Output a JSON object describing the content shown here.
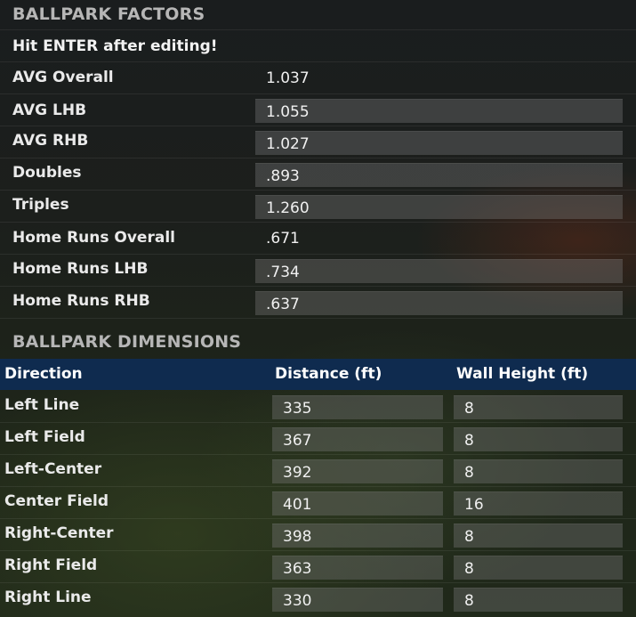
{
  "factors": {
    "title": "BALLPARK FACTORS",
    "note": "Hit ENTER after editing!",
    "rows": [
      {
        "label": "AVG Overall",
        "value": "1.037"
      },
      {
        "label": "AVG LHB",
        "value": "1.055"
      },
      {
        "label": "AVG RHB",
        "value": "1.027"
      },
      {
        "label": "Doubles",
        "value": ".893"
      },
      {
        "label": "Triples",
        "value": "1.260"
      },
      {
        "label": "Home Runs Overall",
        "value": ".671"
      },
      {
        "label": "Home Runs LHB",
        "value": ".734"
      },
      {
        "label": "Home Runs RHB",
        "value": ".637"
      }
    ]
  },
  "dimensions": {
    "title": "BALLPARK DIMENSIONS",
    "headers": {
      "direction": "Direction",
      "distance": "Distance (ft)",
      "wall_height": "Wall Height (ft)"
    },
    "rows": [
      {
        "direction": "Left Line",
        "distance": "335",
        "wall_height": "8"
      },
      {
        "direction": "Left Field",
        "distance": "367",
        "wall_height": "8"
      },
      {
        "direction": "Left-Center",
        "distance": "392",
        "wall_height": "8"
      },
      {
        "direction": "Center Field",
        "distance": "401",
        "wall_height": "16"
      },
      {
        "direction": "Right-Center",
        "distance": "398",
        "wall_height": "8"
      },
      {
        "direction": "Right Field",
        "distance": "363",
        "wall_height": "8"
      },
      {
        "direction": "Right Line",
        "distance": "330",
        "wall_height": "8"
      }
    ]
  }
}
